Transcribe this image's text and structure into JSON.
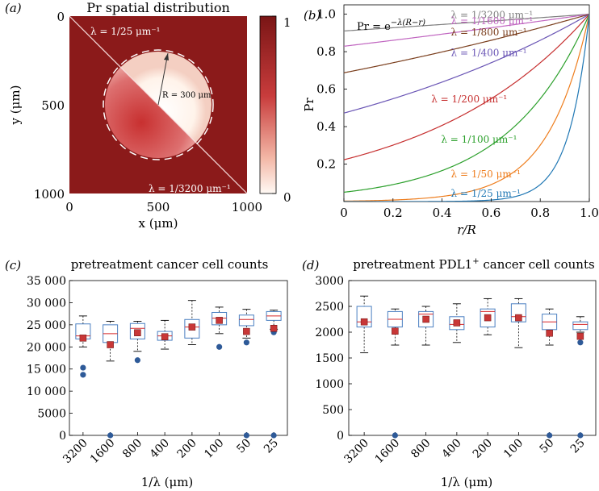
{
  "figure": {
    "panel_labels": [
      "(a)",
      "(b)",
      "(c)",
      "(d)"
    ],
    "colors": {
      "dark_red": "#8b1a1a",
      "mid_red": "#c83c3c",
      "light_end": "#fff8f2",
      "median": "#d62728",
      "mean_marker": "#c83737",
      "outlier": "#2e5a98",
      "box_edge": "#4a7fc1"
    }
  },
  "chart_data": [
    {
      "panel": "(a)",
      "type": "heatmap",
      "title": "Pr spatial distribution",
      "xlabel": "x (μm)",
      "ylabel": "y (μm)",
      "xlim": [
        0,
        1000
      ],
      "ylim": [
        0,
        1000
      ],
      "xticks": [
        0,
        500,
        1000
      ],
      "yticks": [
        0,
        500,
        1000
      ],
      "colorbar": {
        "min": 0,
        "max": 1,
        "ticks": [
          0,
          1
        ]
      },
      "circle_center": [
        500,
        500
      ],
      "circle_radius_um": 300,
      "radius_label": "R = 300 μm",
      "annotations": [
        {
          "text": "λ = 1/25 μm⁻¹",
          "region": "upper-left"
        },
        {
          "text": "λ = 1/3200 μm⁻¹",
          "region": "lower-right"
        }
      ]
    },
    {
      "panel": "(b)",
      "type": "line",
      "equation_base": "Pr = e",
      "equation_exp": "−λ(R−r)",
      "xlabel": "r/R",
      "ylabel": "Pr",
      "xlim": [
        0,
        1
      ],
      "ylim": [
        0,
        1.05
      ],
      "xticks": [
        0,
        0.2,
        0.4,
        0.6,
        0.8,
        1.0
      ],
      "yticks": [
        0.2,
        0.4,
        0.6,
        0.8,
        1.0
      ],
      "R_um": 300,
      "series": [
        {
          "name": "λ = 1/3200 μm⁻¹",
          "inv_lambda": 3200,
          "color": "#7f7f7f"
        },
        {
          "name": "λ = 1/1600 μm⁻¹",
          "inv_lambda": 1600,
          "color": "#c065c0"
        },
        {
          "name": "λ = 1/800 μm⁻¹",
          "inv_lambda": 800,
          "color": "#7b3f1e"
        },
        {
          "name": "λ = 1/400 μm⁻¹",
          "inv_lambda": 400,
          "color": "#6a55b5"
        },
        {
          "name": "λ = 1/200 μm⁻¹",
          "inv_lambda": 200,
          "color": "#c62f2f"
        },
        {
          "name": "λ = 1/100 μm⁻¹",
          "inv_lambda": 100,
          "color": "#2ca02c"
        },
        {
          "name": "λ = 1/50 μm⁻¹",
          "inv_lambda": 50,
          "color": "#ee7d1d"
        },
        {
          "name": "λ = 1/25 μm⁻¹",
          "inv_lambda": 25,
          "color": "#1f77b4"
        }
      ]
    },
    {
      "panel": "(c)",
      "type": "box",
      "title": "pretreatment cancer cell counts",
      "xlabel": "1/λ (μm)",
      "categories": [
        "3200",
        "1600",
        "800",
        "400",
        "200",
        "100",
        "50",
        "25"
      ],
      "ylim": [
        0,
        35000
      ],
      "yticks": [
        0,
        5000,
        10000,
        15000,
        20000,
        25000,
        30000,
        35000
      ],
      "ytick_labels": [
        "0",
        "5000",
        "10 000",
        "15 000",
        "20 000",
        "25 000",
        "30 000",
        "35 000"
      ],
      "boxes": [
        {
          "wlo": 20000,
          "q1": 21800,
          "median": 22500,
          "q3": 25200,
          "whi": 27000,
          "mean": 22000,
          "outliers": [
            15300,
            13700
          ]
        },
        {
          "wlo": 16800,
          "q1": 21000,
          "median": 23000,
          "q3": 25000,
          "whi": 25800,
          "mean": 20500,
          "outliers": [
            0
          ]
        },
        {
          "wlo": 19000,
          "q1": 21800,
          "median": 24200,
          "q3": 25300,
          "whi": 25800,
          "mean": 23200,
          "outliers": [
            17000
          ]
        },
        {
          "wlo": 19500,
          "q1": 21500,
          "median": 22500,
          "q3": 23500,
          "whi": 26000,
          "mean": 22300,
          "outliers": []
        },
        {
          "wlo": 20500,
          "q1": 22000,
          "median": 24500,
          "q3": 26200,
          "whi": 30500,
          "mean": 24500,
          "outliers": []
        },
        {
          "wlo": 23000,
          "q1": 25000,
          "median": 26500,
          "q3": 27800,
          "whi": 29000,
          "mean": 26000,
          "outliers": [
            20000
          ]
        },
        {
          "wlo": 22000,
          "q1": 24800,
          "median": 26200,
          "q3": 27200,
          "whi": 28500,
          "mean": 23500,
          "outliers": [
            21000,
            0
          ]
        },
        {
          "wlo": 24000,
          "q1": 26000,
          "median": 27000,
          "q3": 28000,
          "whi": 28300,
          "mean": 24200,
          "outliers": [
            23300,
            0
          ]
        }
      ]
    },
    {
      "panel": "(d)",
      "type": "box",
      "title_base": "pretreatment PDL1",
      "title_sup": "+",
      "title_rest": " cancer cell counts",
      "xlabel": "1/λ (μm)",
      "categories": [
        "3200",
        "1600",
        "800",
        "400",
        "200",
        "100",
        "50",
        "25"
      ],
      "ylim": [
        0,
        3000
      ],
      "yticks": [
        0,
        500,
        1000,
        1500,
        2000,
        2500,
        3000
      ],
      "ytick_labels": [
        "0",
        "500",
        "1000",
        "1500",
        "2000",
        "2500",
        "3000"
      ],
      "boxes": [
        {
          "wlo": 1600,
          "q1": 2100,
          "median": 2200,
          "q3": 2500,
          "whi": 2700,
          "mean": 2200,
          "outliers": []
        },
        {
          "wlo": 1750,
          "q1": 2100,
          "median": 2250,
          "q3": 2400,
          "whi": 2450,
          "mean": 2020,
          "outliers": [
            0
          ]
        },
        {
          "wlo": 1750,
          "q1": 2100,
          "median": 2350,
          "q3": 2400,
          "whi": 2500,
          "mean": 2250,
          "outliers": []
        },
        {
          "wlo": 1800,
          "q1": 2050,
          "median": 2150,
          "q3": 2300,
          "whi": 2550,
          "mean": 2180,
          "outliers": []
        },
        {
          "wlo": 1950,
          "q1": 2100,
          "median": 2400,
          "q3": 2450,
          "whi": 2650,
          "mean": 2280,
          "outliers": []
        },
        {
          "wlo": 1700,
          "q1": 2200,
          "median": 2300,
          "q3": 2550,
          "whi": 2650,
          "mean": 2280,
          "outliers": []
        },
        {
          "wlo": 1750,
          "q1": 2050,
          "median": 2200,
          "q3": 2350,
          "whi": 2450,
          "mean": 1980,
          "outliers": [
            0
          ]
        },
        {
          "wlo": 2000,
          "q1": 2050,
          "median": 2150,
          "q3": 2200,
          "whi": 2300,
          "mean": 1920,
          "outliers": [
            1800,
            0
          ]
        }
      ]
    }
  ]
}
